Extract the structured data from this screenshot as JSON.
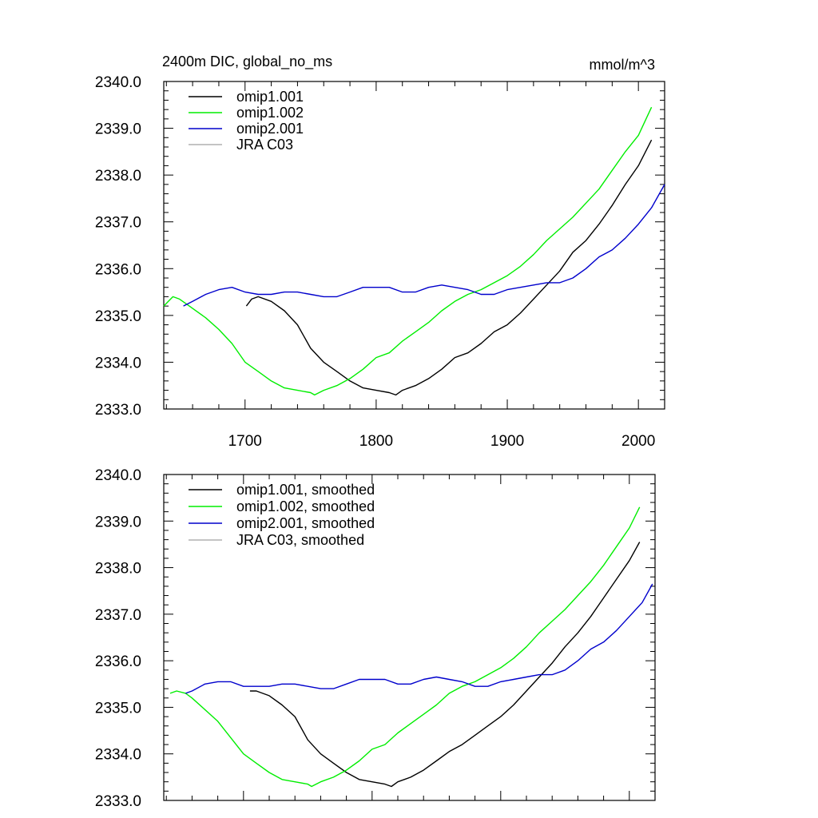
{
  "chart_data": [
    {
      "type": "line",
      "title_left": "2400m DIC, global_no_ms",
      "title_right": "mmol/m^3",
      "xlabel": "",
      "ylabel": "",
      "xlim": [
        1638,
        2020
      ],
      "ylim": [
        2333.0,
        2340.0
      ],
      "x_ticks": [
        1700,
        1800,
        1900,
        2000
      ],
      "x_tick_labels": [
        "1700",
        "1800",
        "1900",
        "2000"
      ],
      "y_ticks": [
        2333.0,
        2334.0,
        2335.0,
        2336.0,
        2337.0,
        2338.0,
        2339.0,
        2340.0
      ],
      "y_tick_labels": [
        "2333.0",
        "2334.0",
        "2335.0",
        "2336.0",
        "2337.0",
        "2338.0",
        "2339.0",
        "2340.0"
      ],
      "legend_position": "top-left",
      "series": [
        {
          "name": "omip1.001",
          "color": "#000000",
          "x": [
            1701,
            1705,
            1710,
            1720,
            1730,
            1740,
            1750,
            1760,
            1770,
            1780,
            1790,
            1800,
            1810,
            1815,
            1820,
            1830,
            1840,
            1850,
            1860,
            1870,
            1880,
            1890,
            1900,
            1910,
            1920,
            1930,
            1940,
            1950,
            1960,
            1970,
            1980,
            1990,
            2000,
            2010
          ],
          "y": [
            2335.2,
            2335.35,
            2335.4,
            2335.3,
            2335.1,
            2334.8,
            2334.3,
            2334.0,
            2333.8,
            2333.6,
            2333.45,
            2333.4,
            2333.35,
            2333.3,
            2333.4,
            2333.5,
            2333.65,
            2333.85,
            2334.1,
            2334.2,
            2334.4,
            2334.65,
            2334.8,
            2335.05,
            2335.35,
            2335.65,
            2335.95,
            2336.35,
            2336.6,
            2336.95,
            2337.35,
            2337.8,
            2338.2,
            2338.75
          ]
        },
        {
          "name": "omip1.002",
          "color": "#00ee00",
          "x": [
            1638,
            1645,
            1650,
            1655,
            1660,
            1670,
            1680,
            1690,
            1700,
            1710,
            1720,
            1730,
            1740,
            1750,
            1753,
            1760,
            1770,
            1780,
            1790,
            1800,
            1810,
            1820,
            1830,
            1840,
            1850,
            1860,
            1870,
            1880,
            1890,
            1900,
            1910,
            1920,
            1930,
            1940,
            1950,
            1960,
            1970,
            1980,
            1990,
            2000,
            2010
          ],
          "y": [
            2335.2,
            2335.4,
            2335.35,
            2335.25,
            2335.15,
            2334.95,
            2334.7,
            2334.4,
            2334.0,
            2333.8,
            2333.6,
            2333.45,
            2333.4,
            2333.35,
            2333.3,
            2333.4,
            2333.5,
            2333.65,
            2333.85,
            2334.1,
            2334.2,
            2334.45,
            2334.65,
            2334.85,
            2335.1,
            2335.3,
            2335.45,
            2335.55,
            2335.7,
            2335.85,
            2336.05,
            2336.3,
            2336.6,
            2336.85,
            2337.1,
            2337.4,
            2337.7,
            2338.1,
            2338.5,
            2338.85,
            2339.45
          ]
        },
        {
          "name": "omip2.001",
          "color": "#0000cc",
          "x": [
            1653,
            1660,
            1670,
            1680,
            1690,
            1700,
            1710,
            1720,
            1730,
            1740,
            1750,
            1760,
            1770,
            1780,
            1790,
            1800,
            1810,
            1820,
            1830,
            1840,
            1850,
            1860,
            1870,
            1880,
            1890,
            1900,
            1910,
            1920,
            1930,
            1940,
            1950,
            1960,
            1970,
            1980,
            1990,
            2000,
            2010,
            2020
          ],
          "y": [
            2335.2,
            2335.3,
            2335.45,
            2335.55,
            2335.6,
            2335.5,
            2335.45,
            2335.45,
            2335.5,
            2335.5,
            2335.45,
            2335.4,
            2335.4,
            2335.5,
            2335.6,
            2335.6,
            2335.6,
            2335.5,
            2335.5,
            2335.6,
            2335.65,
            2335.6,
            2335.55,
            2335.45,
            2335.45,
            2335.55,
            2335.6,
            2335.65,
            2335.7,
            2335.7,
            2335.8,
            2336.0,
            2336.25,
            2336.4,
            2336.65,
            2336.95,
            2337.3,
            2337.8
          ]
        },
        {
          "name": "JRA C03",
          "color": "#b0b0b0",
          "x": [],
          "y": []
        }
      ]
    },
    {
      "type": "line",
      "title_left": "",
      "title_right": "",
      "xlabel": "",
      "ylabel": "",
      "xlim": [
        1638,
        2020
      ],
      "ylim": [
        2333.0,
        2340.0
      ],
      "x_ticks": [
        1700,
        1800,
        1900,
        2000
      ],
      "x_tick_labels": [],
      "y_ticks": [
        2333.0,
        2334.0,
        2335.0,
        2336.0,
        2337.0,
        2338.0,
        2339.0,
        2340.0
      ],
      "y_tick_labels": [
        "2333.0",
        "2334.0",
        "2335.0",
        "2336.0",
        "2337.0",
        "2338.0",
        "2339.0",
        "2340.0"
      ],
      "legend_position": "top-left",
      "series": [
        {
          "name": "omip1.001, smoothed",
          "color": "#000000",
          "x": [
            1705,
            1710,
            1720,
            1730,
            1740,
            1750,
            1760,
            1770,
            1780,
            1790,
            1800,
            1810,
            1815,
            1820,
            1830,
            1840,
            1850,
            1860,
            1870,
            1880,
            1890,
            1900,
            1910,
            1920,
            1930,
            1940,
            1950,
            1960,
            1970,
            1980,
            1990,
            2000,
            2008
          ],
          "y": [
            2335.35,
            2335.35,
            2335.25,
            2335.05,
            2334.8,
            2334.3,
            2334.0,
            2333.8,
            2333.6,
            2333.45,
            2333.4,
            2333.35,
            2333.3,
            2333.4,
            2333.5,
            2333.65,
            2333.85,
            2334.05,
            2334.2,
            2334.4,
            2334.6,
            2334.8,
            2335.05,
            2335.35,
            2335.65,
            2335.95,
            2336.3,
            2336.6,
            2336.95,
            2337.35,
            2337.75,
            2338.15,
            2338.55
          ]
        },
        {
          "name": "omip1.002, smoothed",
          "color": "#00ee00",
          "x": [
            1643,
            1648,
            1655,
            1660,
            1670,
            1680,
            1690,
            1700,
            1710,
            1720,
            1730,
            1740,
            1750,
            1753,
            1760,
            1770,
            1780,
            1790,
            1800,
            1810,
            1820,
            1830,
            1840,
            1850,
            1860,
            1870,
            1880,
            1890,
            1900,
            1910,
            1920,
            1930,
            1940,
            1950,
            1960,
            1970,
            1980,
            1990,
            2000,
            2008
          ],
          "y": [
            2335.3,
            2335.35,
            2335.3,
            2335.2,
            2334.95,
            2334.7,
            2334.35,
            2334.0,
            2333.8,
            2333.6,
            2333.45,
            2333.4,
            2333.35,
            2333.3,
            2333.4,
            2333.5,
            2333.65,
            2333.85,
            2334.1,
            2334.2,
            2334.45,
            2334.65,
            2334.85,
            2335.05,
            2335.3,
            2335.45,
            2335.55,
            2335.7,
            2335.85,
            2336.05,
            2336.3,
            2336.6,
            2336.85,
            2337.1,
            2337.4,
            2337.7,
            2338.05,
            2338.45,
            2338.85,
            2339.3
          ]
        },
        {
          "name": "omip2.001, smoothed",
          "color": "#0000cc",
          "x": [
            1655,
            1660,
            1670,
            1680,
            1690,
            1700,
            1710,
            1720,
            1730,
            1740,
            1750,
            1760,
            1770,
            1780,
            1790,
            1800,
            1810,
            1820,
            1830,
            1840,
            1850,
            1860,
            1870,
            1880,
            1890,
            1900,
            1910,
            1920,
            1930,
            1940,
            1950,
            1960,
            1970,
            1980,
            1990,
            2000,
            2010,
            2018
          ],
          "y": [
            2335.3,
            2335.35,
            2335.5,
            2335.55,
            2335.55,
            2335.45,
            2335.45,
            2335.45,
            2335.5,
            2335.5,
            2335.45,
            2335.4,
            2335.4,
            2335.5,
            2335.6,
            2335.6,
            2335.6,
            2335.5,
            2335.5,
            2335.6,
            2335.65,
            2335.6,
            2335.55,
            2335.45,
            2335.45,
            2335.55,
            2335.6,
            2335.65,
            2335.7,
            2335.7,
            2335.8,
            2336.0,
            2336.25,
            2336.4,
            2336.65,
            2336.95,
            2337.25,
            2337.65
          ]
        },
        {
          "name": "JRA C03, smoothed",
          "color": "#b0b0b0",
          "x": [],
          "y": []
        }
      ]
    }
  ]
}
